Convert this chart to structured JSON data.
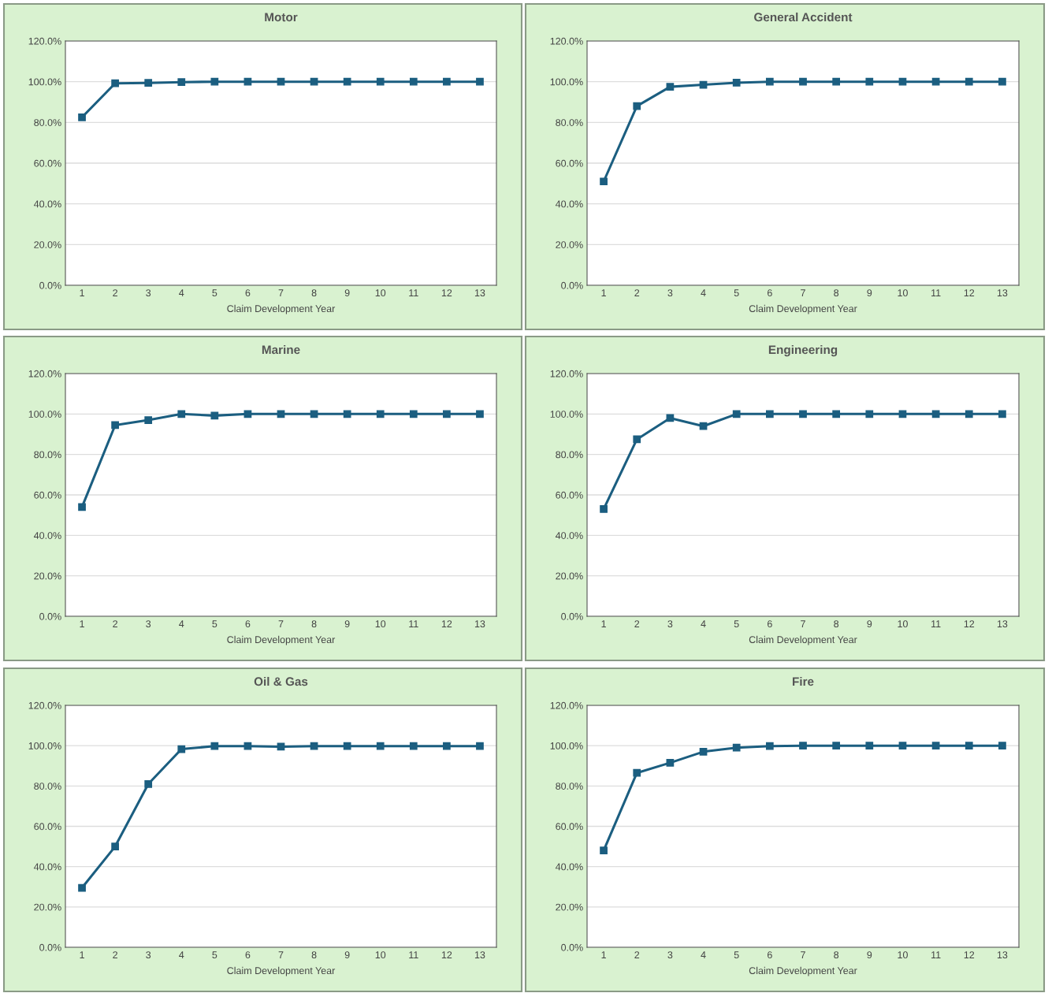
{
  "chart_data": [
    {
      "type": "line",
      "title": "Motor",
      "xlabel": "Claim Development Year",
      "categories": [
        "1",
        "2",
        "3",
        "4",
        "5",
        "6",
        "7",
        "8",
        "9",
        "10",
        "11",
        "12",
        "13"
      ],
      "series": [
        {
          "color": "#1b5e80",
          "values": [
            82.5,
            99.2,
            99.4,
            99.8,
            100,
            100,
            100,
            100,
            100,
            100,
            100,
            100,
            100
          ]
        }
      ],
      "ylim": [
        0,
        120
      ],
      "yticks": [
        {
          "value": 0,
          "label": "0.0%"
        },
        {
          "value": 20,
          "label": "20.0%"
        },
        {
          "value": 40,
          "label": "40.0%"
        },
        {
          "value": 60,
          "label": "60.0%"
        },
        {
          "value": 80,
          "label": "80.0%"
        },
        {
          "value": 100,
          "label": "100.0%"
        },
        {
          "value": 120,
          "label": "120.0%"
        }
      ],
      "grid": "y",
      "marker": "square",
      "line_style": "solid"
    },
    {
      "type": "line",
      "title": "General Accident",
      "xlabel": "Claim Development Year",
      "categories": [
        "1",
        "2",
        "3",
        "4",
        "5",
        "6",
        "7",
        "8",
        "9",
        "10",
        "11",
        "12",
        "13"
      ],
      "series": [
        {
          "color": "#1b5e80",
          "values": [
            51,
            88,
            97.5,
            98.5,
            99.5,
            100,
            100,
            100,
            100,
            100,
            100,
            100,
            100
          ]
        }
      ],
      "ylim": [
        0,
        120
      ],
      "yticks": [
        {
          "value": 0,
          "label": "0.0%"
        },
        {
          "value": 20,
          "label": "20.0%"
        },
        {
          "value": 40,
          "label": "40.0%"
        },
        {
          "value": 60,
          "label": "60.0%"
        },
        {
          "value": 80,
          "label": "80.0%"
        },
        {
          "value": 100,
          "label": "100.0%"
        },
        {
          "value": 120,
          "label": "120.0%"
        }
      ],
      "grid": "y",
      "marker": "square",
      "line_style": "solid"
    },
    {
      "type": "line",
      "title": "Marine",
      "xlabel": "Claim Development Year",
      "categories": [
        "1",
        "2",
        "3",
        "4",
        "5",
        "6",
        "7",
        "8",
        "9",
        "10",
        "11",
        "12",
        "13"
      ],
      "series": [
        {
          "color": "#1b5e80",
          "values": [
            54,
            94.5,
            97,
            100,
            99.2,
            100,
            100,
            100,
            100,
            100,
            100,
            100,
            100
          ]
        }
      ],
      "ylim": [
        0,
        120
      ],
      "yticks": [
        {
          "value": 0,
          "label": "0.0%"
        },
        {
          "value": 20,
          "label": "20.0%"
        },
        {
          "value": 40,
          "label": "40.0%"
        },
        {
          "value": 60,
          "label": "60.0%"
        },
        {
          "value": 80,
          "label": "80.0%"
        },
        {
          "value": 100,
          "label": "100.0%"
        },
        {
          "value": 120,
          "label": "120.0%"
        }
      ],
      "grid": "y",
      "marker": "square",
      "line_style": "solid"
    },
    {
      "type": "line",
      "title": "Engineering",
      "xlabel": "Claim Development Year",
      "categories": [
        "1",
        "2",
        "3",
        "4",
        "5",
        "6",
        "7",
        "8",
        "9",
        "10",
        "11",
        "12",
        "13"
      ],
      "series": [
        {
          "color": "#1b5e80",
          "values": [
            53,
            87.5,
            98,
            94,
            100,
            100,
            100,
            100,
            100,
            100,
            100,
            100,
            100
          ]
        }
      ],
      "ylim": [
        0,
        120
      ],
      "yticks": [
        {
          "value": 0,
          "label": "0.0%"
        },
        {
          "value": 20,
          "label": "20.0%"
        },
        {
          "value": 40,
          "label": "40.0%"
        },
        {
          "value": 60,
          "label": "60.0%"
        },
        {
          "value": 80,
          "label": "80.0%"
        },
        {
          "value": 100,
          "label": "100.0%"
        },
        {
          "value": 120,
          "label": "120.0%"
        }
      ],
      "grid": "y",
      "marker": "square",
      "line_style": "solid"
    },
    {
      "type": "line",
      "title": "Oil & Gas",
      "xlabel": "Claim Development Year",
      "categories": [
        "1",
        "2",
        "3",
        "4",
        "5",
        "6",
        "7",
        "8",
        "9",
        "10",
        "11",
        "12",
        "13"
      ],
      "series": [
        {
          "color": "#1b5e80",
          "values": [
            29.5,
            50,
            81,
            98.3,
            99.8,
            99.8,
            99.5,
            99.8,
            99.8,
            99.8,
            99.8,
            99.8,
            99.8
          ]
        }
      ],
      "ylim": [
        0,
        120
      ],
      "yticks": [
        {
          "value": 0,
          "label": "0.0%"
        },
        {
          "value": 20,
          "label": "20.0%"
        },
        {
          "value": 40,
          "label": "40.0%"
        },
        {
          "value": 60,
          "label": "60.0%"
        },
        {
          "value": 80,
          "label": "80.0%"
        },
        {
          "value": 100,
          "label": "100.0%"
        },
        {
          "value": 120,
          "label": "120.0%"
        }
      ],
      "grid": "y",
      "marker": "square",
      "line_style": "solid"
    },
    {
      "type": "line",
      "title": "Fire",
      "xlabel": "Claim Development Year",
      "categories": [
        "1",
        "2",
        "3",
        "4",
        "5",
        "6",
        "7",
        "8",
        "9",
        "10",
        "11",
        "12",
        "13"
      ],
      "series": [
        {
          "color": "#1b5e80",
          "values": [
            48,
            86.5,
            91.5,
            97,
            99,
            99.8,
            100,
            100,
            100,
            100,
            100,
            100,
            100
          ]
        }
      ],
      "ylim": [
        0,
        120
      ],
      "yticks": [
        {
          "value": 0,
          "label": "0.0%"
        },
        {
          "value": 20,
          "label": "20.0%"
        },
        {
          "value": 40,
          "label": "40.0%"
        },
        {
          "value": 60,
          "label": "60.0%"
        },
        {
          "value": 80,
          "label": "80.0%"
        },
        {
          "value": 100,
          "label": "100.0%"
        },
        {
          "value": 120,
          "label": "120.0%"
        }
      ],
      "grid": "y",
      "marker": "square",
      "line_style": "solid"
    }
  ]
}
